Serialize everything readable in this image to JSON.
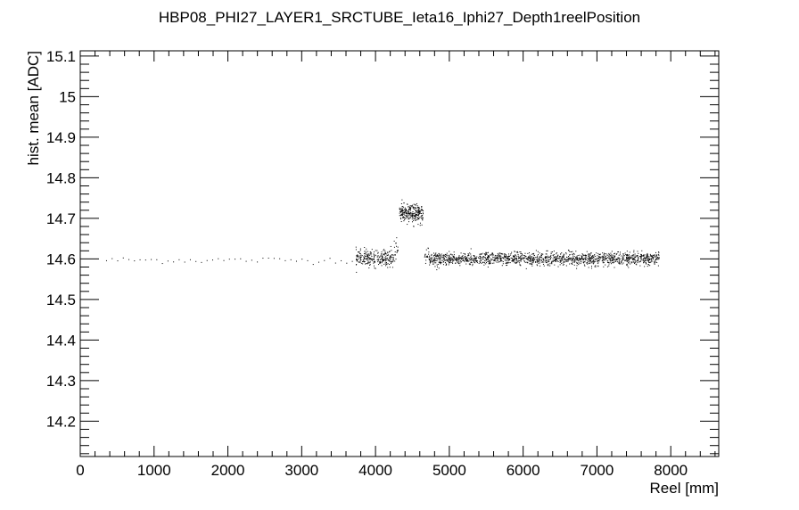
{
  "chart_data": {
    "type": "scatter",
    "title": "HBP08_PHI27_LAYER1_SRCTUBE_Ieta16_Iphi27_Depth1reelPosition",
    "xlabel": "Reel [mm]",
    "ylabel": "hist. mean [ADC]",
    "xlim": [
      0,
      8650
    ],
    "ylim": [
      14.113,
      15.113
    ],
    "x_ticks": [
      0,
      1000,
      2000,
      3000,
      4000,
      5000,
      6000,
      7000,
      8000
    ],
    "y_ticks": [
      14.2,
      14.3,
      14.4,
      14.5,
      14.6,
      14.7,
      14.8,
      14.9,
      15,
      15.1
    ],
    "y_tick_labels": [
      "14.2",
      "14.3",
      "14.4",
      "14.5",
      "14.6",
      "14.7",
      "14.8",
      "14.9",
      "15",
      "15.1"
    ],
    "grid": false,
    "legend": "none",
    "marker_color": "#000000",
    "series": [
      {
        "segments": [
          {
            "x_range": [
              350,
              3680
            ],
            "y_level": 14.598,
            "noise": 0.004,
            "count": 45
          },
          {
            "x_range": [
              3730,
              4240
            ],
            "y_level": 14.603,
            "noise": 0.01,
            "count": 260
          },
          {
            "x_range": [
              4245,
              4300
            ],
            "y_level": 14.62,
            "noise": 0.012,
            "count": 18
          },
          {
            "x_range": [
              4320,
              4640
            ],
            "y_level": 14.713,
            "noise": 0.011,
            "count": 260
          },
          {
            "x_range": [
              4660,
              4720
            ],
            "y_level": 14.61,
            "noise": 0.012,
            "count": 18
          },
          {
            "x_range": [
              4720,
              7840
            ],
            "y_level": 14.601,
            "noise": 0.008,
            "count": 1500
          }
        ]
      }
    ]
  }
}
